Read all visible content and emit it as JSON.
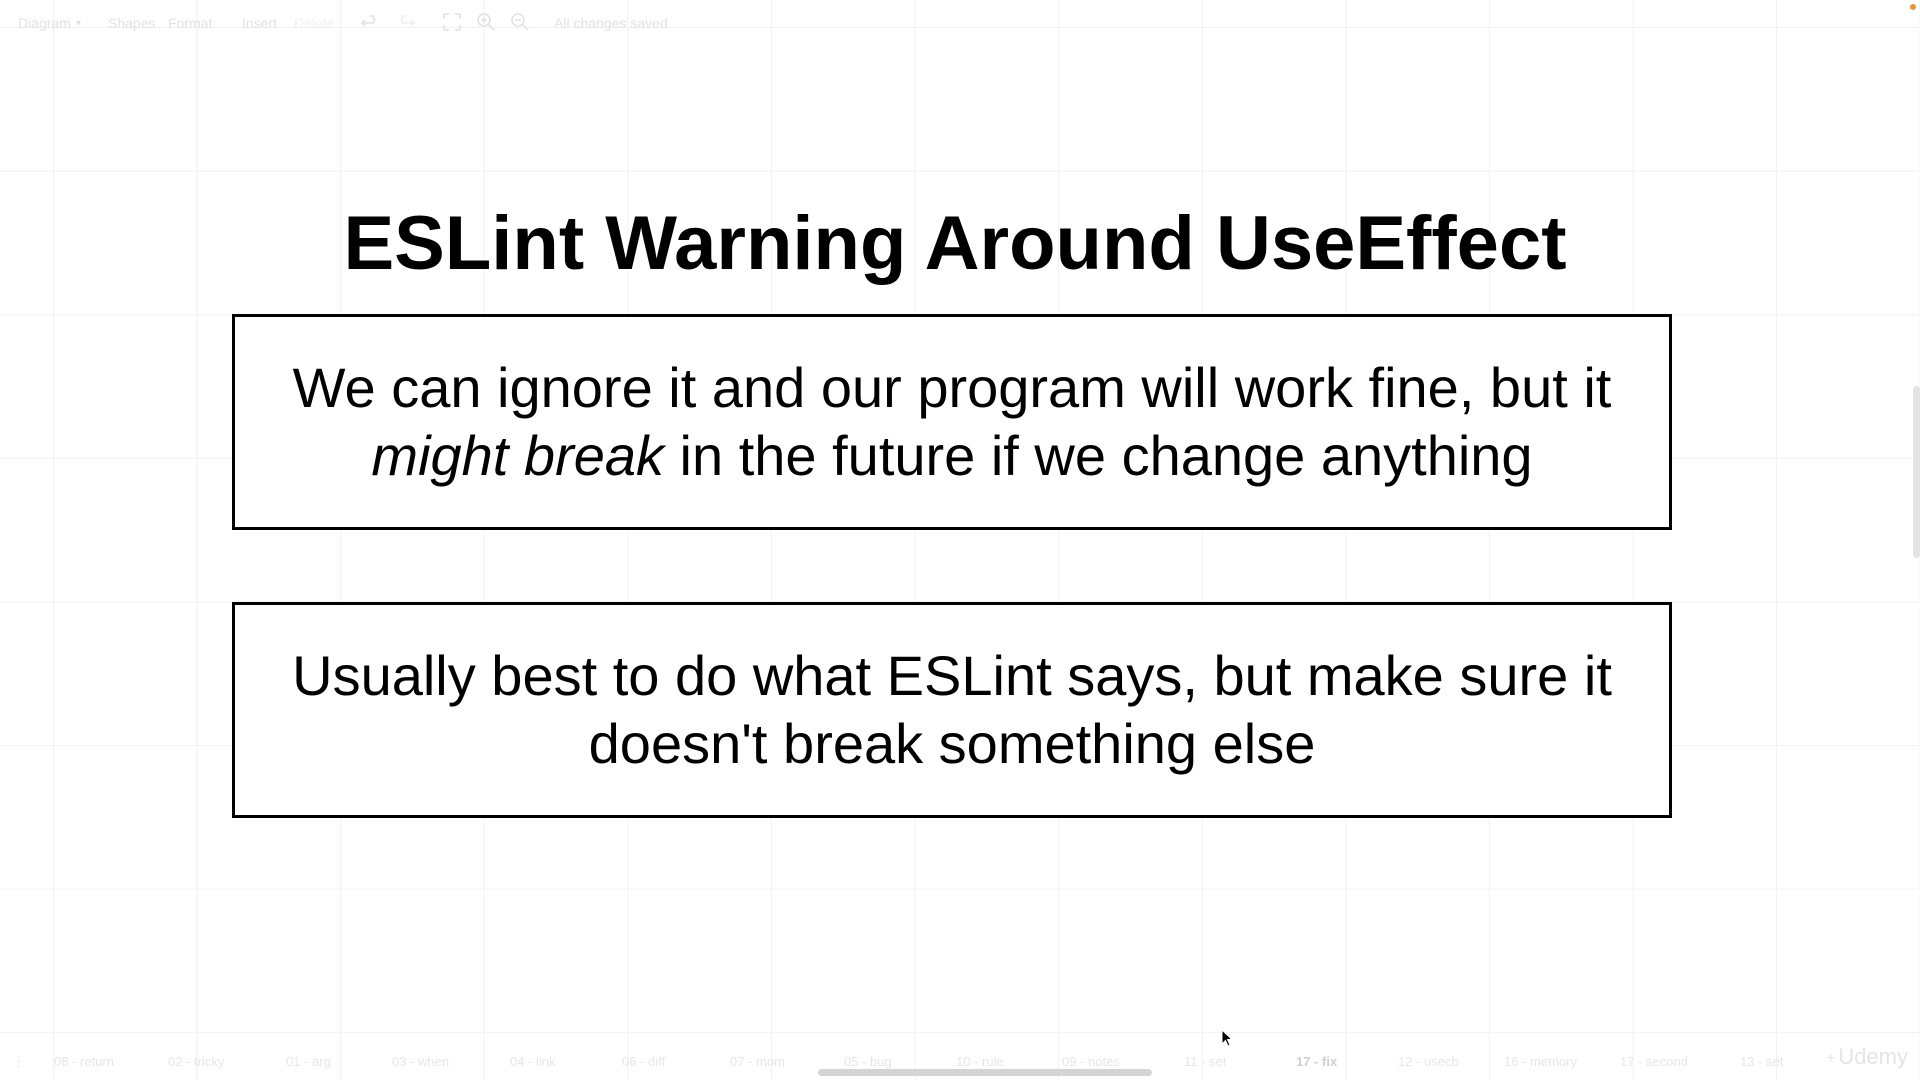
{
  "toolbar": {
    "menu_diagram": "Diagram",
    "menu_shapes": "Shapes",
    "menu_format": "Format",
    "menu_insert": "Insert",
    "menu_delete": "Delete",
    "status": "All changes saved"
  },
  "slide": {
    "title": "ESLint Warning Around UseEffect",
    "box1": {
      "line1": "We can ignore it and our program will work fine, but it",
      "emphasis": "might break",
      "line2_rest": " in the future if we change anything"
    },
    "box2": {
      "line1": "Usually best to do what ESLint says, but make sure it",
      "line2": "doesn't break something else"
    }
  },
  "page_tabs": [
    {
      "label": "08 - return"
    },
    {
      "label": "02 - tricky"
    },
    {
      "label": "01 - arg"
    },
    {
      "label": "03 - when"
    },
    {
      "label": "04 - link"
    },
    {
      "label": "06 - diff"
    },
    {
      "label": "07 - mom"
    },
    {
      "label": "05 - bug"
    },
    {
      "label": "10 - rule"
    },
    {
      "label": "09 - notes"
    },
    {
      "label": "11 - set"
    },
    {
      "label": "17 - fix"
    },
    {
      "label": "12 - usecb"
    },
    {
      "label": "16 - memory"
    },
    {
      "label": "17 - second"
    },
    {
      "label": "13 - set"
    }
  ],
  "active_page_tab": "17 - fix",
  "watermark": "Udemy",
  "colors": {
    "grid": "#f1f1f1",
    "accent_dot": "#e8943a",
    "text": "#000000"
  }
}
